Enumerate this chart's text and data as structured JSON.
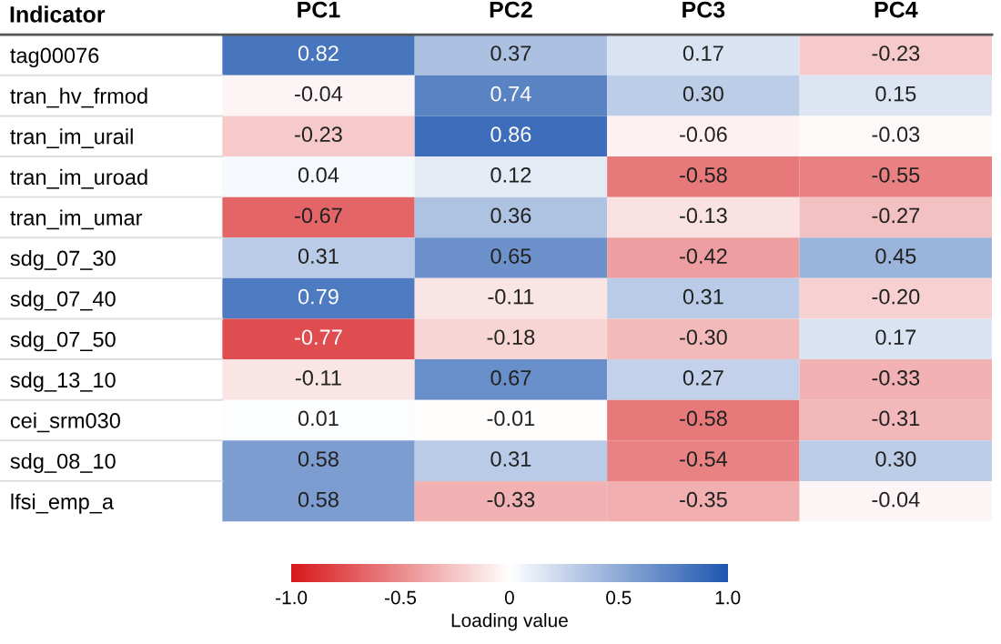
{
  "chart_data": {
    "type": "heatmap",
    "ylabel": "Indicator",
    "clabel": "Loading value",
    "categories": [
      "PC1",
      "PC2",
      "PC3",
      "PC4"
    ],
    "y_categories": [
      "tag00076",
      "tran_hv_frmod",
      "tran_im_urail",
      "tran_im_uroad",
      "tran_im_umar",
      "sdg_07_30",
      "sdg_07_40",
      "sdg_07_50",
      "sdg_13_10",
      "cei_srm030",
      "sdg_08_10",
      "lfsi_emp_a"
    ],
    "cells": [
      [
        0.82,
        0.37,
        0.17,
        -0.23
      ],
      [
        -0.04,
        0.74,
        0.3,
        0.15
      ],
      [
        -0.23,
        0.86,
        -0.06,
        -0.03
      ],
      [
        0.04,
        0.12,
        -0.58,
        -0.55
      ],
      [
        -0.67,
        0.36,
        -0.13,
        -0.27
      ],
      [
        0.31,
        0.65,
        -0.42,
        0.45
      ],
      [
        0.79,
        -0.11,
        0.31,
        -0.2
      ],
      [
        -0.77,
        -0.18,
        -0.3,
        0.17
      ],
      [
        -0.11,
        0.67,
        0.27,
        -0.33
      ],
      [
        0.01,
        -0.01,
        -0.58,
        -0.31
      ],
      [
        0.58,
        0.31,
        -0.54,
        0.3
      ],
      [
        0.58,
        -0.33,
        -0.35,
        -0.04
      ]
    ],
    "cell_labels": [
      [
        "0.82",
        "0.37",
        "0.17",
        "-0.23"
      ],
      [
        "-0.04",
        "0.74",
        "0.30",
        "0.15"
      ],
      [
        "-0.23",
        "0.86",
        "-0.06",
        "-0.03"
      ],
      [
        "0.04",
        "0.12",
        "-0.58",
        "-0.55"
      ],
      [
        "-0.67",
        "0.36",
        "-0.13",
        "-0.27"
      ],
      [
        "0.31",
        "0.65",
        "-0.42",
        "0.45"
      ],
      [
        "0.79",
        "-0.11",
        "0.31",
        "-0.20"
      ],
      [
        "-0.77",
        "-0.18",
        "-0.30",
        "0.17"
      ],
      [
        "-0.11",
        "0.67",
        "0.27",
        "-0.33"
      ],
      [
        "0.01",
        "-0.01",
        "-0.58",
        "-0.31"
      ],
      [
        "0.58",
        "0.31",
        "-0.54",
        "0.30"
      ],
      [
        "0.58",
        "-0.33",
        "-0.35",
        "-0.04"
      ]
    ],
    "clim": [
      -1,
      1
    ],
    "cticks": [
      {
        "value": -1,
        "label": "-1.0"
      },
      -0.5,
      0,
      0.5,
      {
        "value": 1,
        "label": "1.0"
      }
    ]
  }
}
